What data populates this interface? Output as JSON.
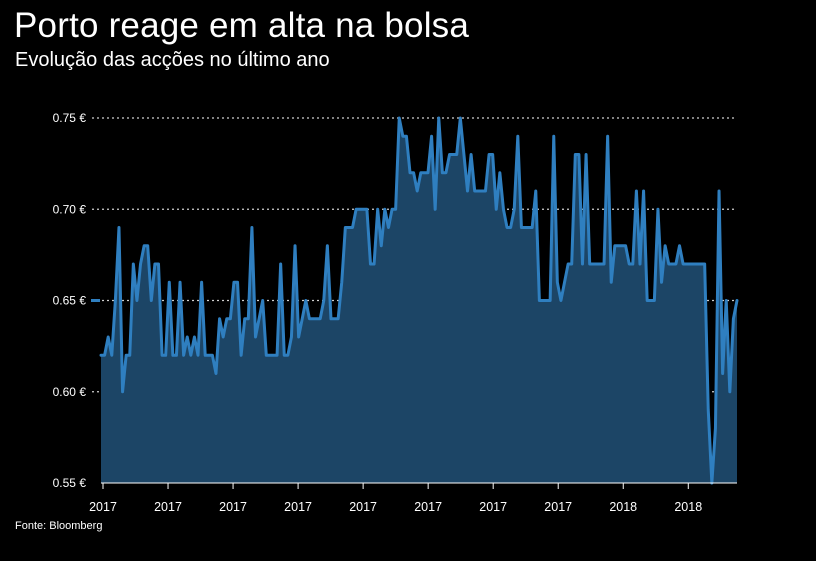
{
  "chart_data": {
    "type": "area",
    "title": "Porto reage em alta na bolsa",
    "subtitle": "Evolução das acções no último ano",
    "source": "Fonte: Bloomberg",
    "xlabel": "",
    "ylabel": "",
    "ylim": [
      0.55,
      0.75
    ],
    "y_ticks": [
      {
        "value": 0.75,
        "label": "0.75 €"
      },
      {
        "value": 0.7,
        "label": "0.70 €"
      },
      {
        "value": 0.65,
        "label": "0.65 €"
      },
      {
        "value": 0.6,
        "label": "0.60 €"
      },
      {
        "value": 0.55,
        "label": "0.55 €"
      }
    ],
    "x_tick_labels": [
      "2017",
      "2017",
      "2017",
      "2017",
      "2017",
      "2017",
      "2017",
      "2017",
      "2018",
      "2018"
    ],
    "last_value": 0.65,
    "series": [
      {
        "name": "Porto",
        "values": [
          0.62,
          0.62,
          0.63,
          0.62,
          0.65,
          0.69,
          0.6,
          0.62,
          0.62,
          0.67,
          0.65,
          0.67,
          0.68,
          0.68,
          0.65,
          0.67,
          0.67,
          0.62,
          0.62,
          0.66,
          0.62,
          0.62,
          0.66,
          0.62,
          0.63,
          0.62,
          0.63,
          0.62,
          0.66,
          0.62,
          0.62,
          0.62,
          0.61,
          0.64,
          0.63,
          0.64,
          0.64,
          0.66,
          0.66,
          0.62,
          0.64,
          0.64,
          0.69,
          0.63,
          0.64,
          0.65,
          0.62,
          0.62,
          0.62,
          0.62,
          0.67,
          0.62,
          0.62,
          0.63,
          0.68,
          0.63,
          0.64,
          0.65,
          0.64,
          0.64,
          0.64,
          0.64,
          0.65,
          0.68,
          0.64,
          0.64,
          0.64,
          0.66,
          0.69,
          0.69,
          0.69,
          0.7,
          0.7,
          0.7,
          0.7,
          0.67,
          0.67,
          0.7,
          0.68,
          0.7,
          0.69,
          0.7,
          0.7,
          0.75,
          0.74,
          0.74,
          0.72,
          0.72,
          0.71,
          0.72,
          0.72,
          0.72,
          0.74,
          0.7,
          0.75,
          0.72,
          0.72,
          0.73,
          0.73,
          0.73,
          0.75,
          0.73,
          0.71,
          0.73,
          0.71,
          0.71,
          0.71,
          0.71,
          0.73,
          0.73,
          0.7,
          0.72,
          0.7,
          0.69,
          0.69,
          0.7,
          0.74,
          0.69,
          0.69,
          0.69,
          0.69,
          0.71,
          0.65,
          0.65,
          0.65,
          0.65,
          0.74,
          0.66,
          0.65,
          0.66,
          0.67,
          0.67,
          0.73,
          0.73,
          0.67,
          0.73,
          0.67,
          0.67,
          0.67,
          0.67,
          0.67,
          0.74,
          0.66,
          0.68,
          0.68,
          0.68,
          0.68,
          0.67,
          0.67,
          0.71,
          0.67,
          0.71,
          0.65,
          0.65,
          0.65,
          0.7,
          0.66,
          0.68,
          0.67,
          0.67,
          0.67,
          0.68,
          0.67,
          0.67,
          0.67,
          0.67,
          0.67,
          0.67,
          0.67,
          0.59,
          0.55,
          0.58,
          0.71,
          0.61,
          0.65,
          0.6,
          0.64,
          0.65
        ]
      }
    ]
  }
}
